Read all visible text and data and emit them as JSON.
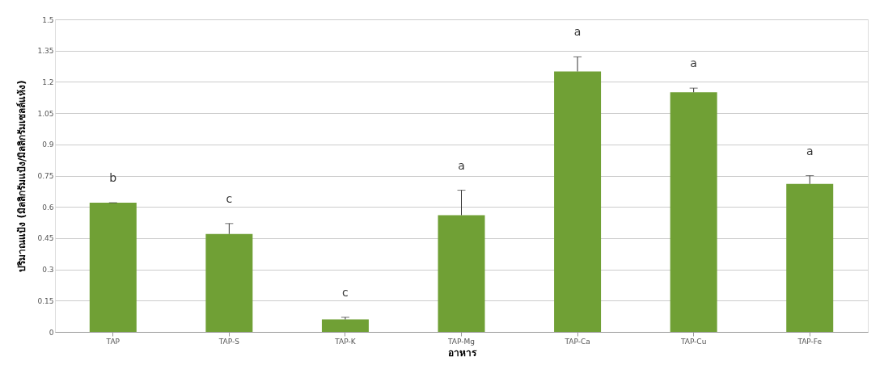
{
  "chart_data": {
    "type": "bar",
    "xlabel": "อาหาร",
    "ylabel": "ปริมาณแป้ง (มิลลิกรัมแป้ง/มิลลิกรัมเซลล์แห้ง)",
    "categories": [
      "TAP",
      "TAP-S",
      "TAP-K",
      "TAP-Mg",
      "TAP-Ca",
      "TAP-Cu",
      "TAP-Fe"
    ],
    "values": [
      0.62,
      0.47,
      0.06,
      0.56,
      1.25,
      1.15,
      0.71
    ],
    "errors": [
      [
        0.62,
        0.62
      ],
      [
        0.47,
        0.52
      ],
      [
        0.06,
        0.07
      ],
      [
        0.56,
        0.68
      ],
      [
        1.25,
        1.32
      ],
      [
        1.15,
        1.17
      ],
      [
        0.71,
        0.75
      ]
    ],
    "color": "#70a035",
    "ylim": [
      0,
      1.5
    ],
    "yticks": [
      0,
      0.15,
      0.3,
      0.45,
      0.6,
      0.75,
      0.9,
      1.05,
      1.2,
      1.35,
      1.5
    ],
    "grid": "y",
    "annotations": [
      {
        "text": "b",
        "x": "TAP",
        "y": 0.62
      },
      {
        "text": "c",
        "x": "TAP-S",
        "y": 0.52
      },
      {
        "text": "c",
        "x": "TAP-K",
        "y": 0.07
      },
      {
        "text": "a",
        "x": "TAP-Mg",
        "y": 0.68
      },
      {
        "text": "a",
        "x": "TAP-Ca",
        "y": 1.32
      },
      {
        "text": "a",
        "x": "TAP-Cu",
        "y": 1.17
      },
      {
        "text": "a",
        "x": "TAP-Fe",
        "y": 0.75
      }
    ]
  }
}
